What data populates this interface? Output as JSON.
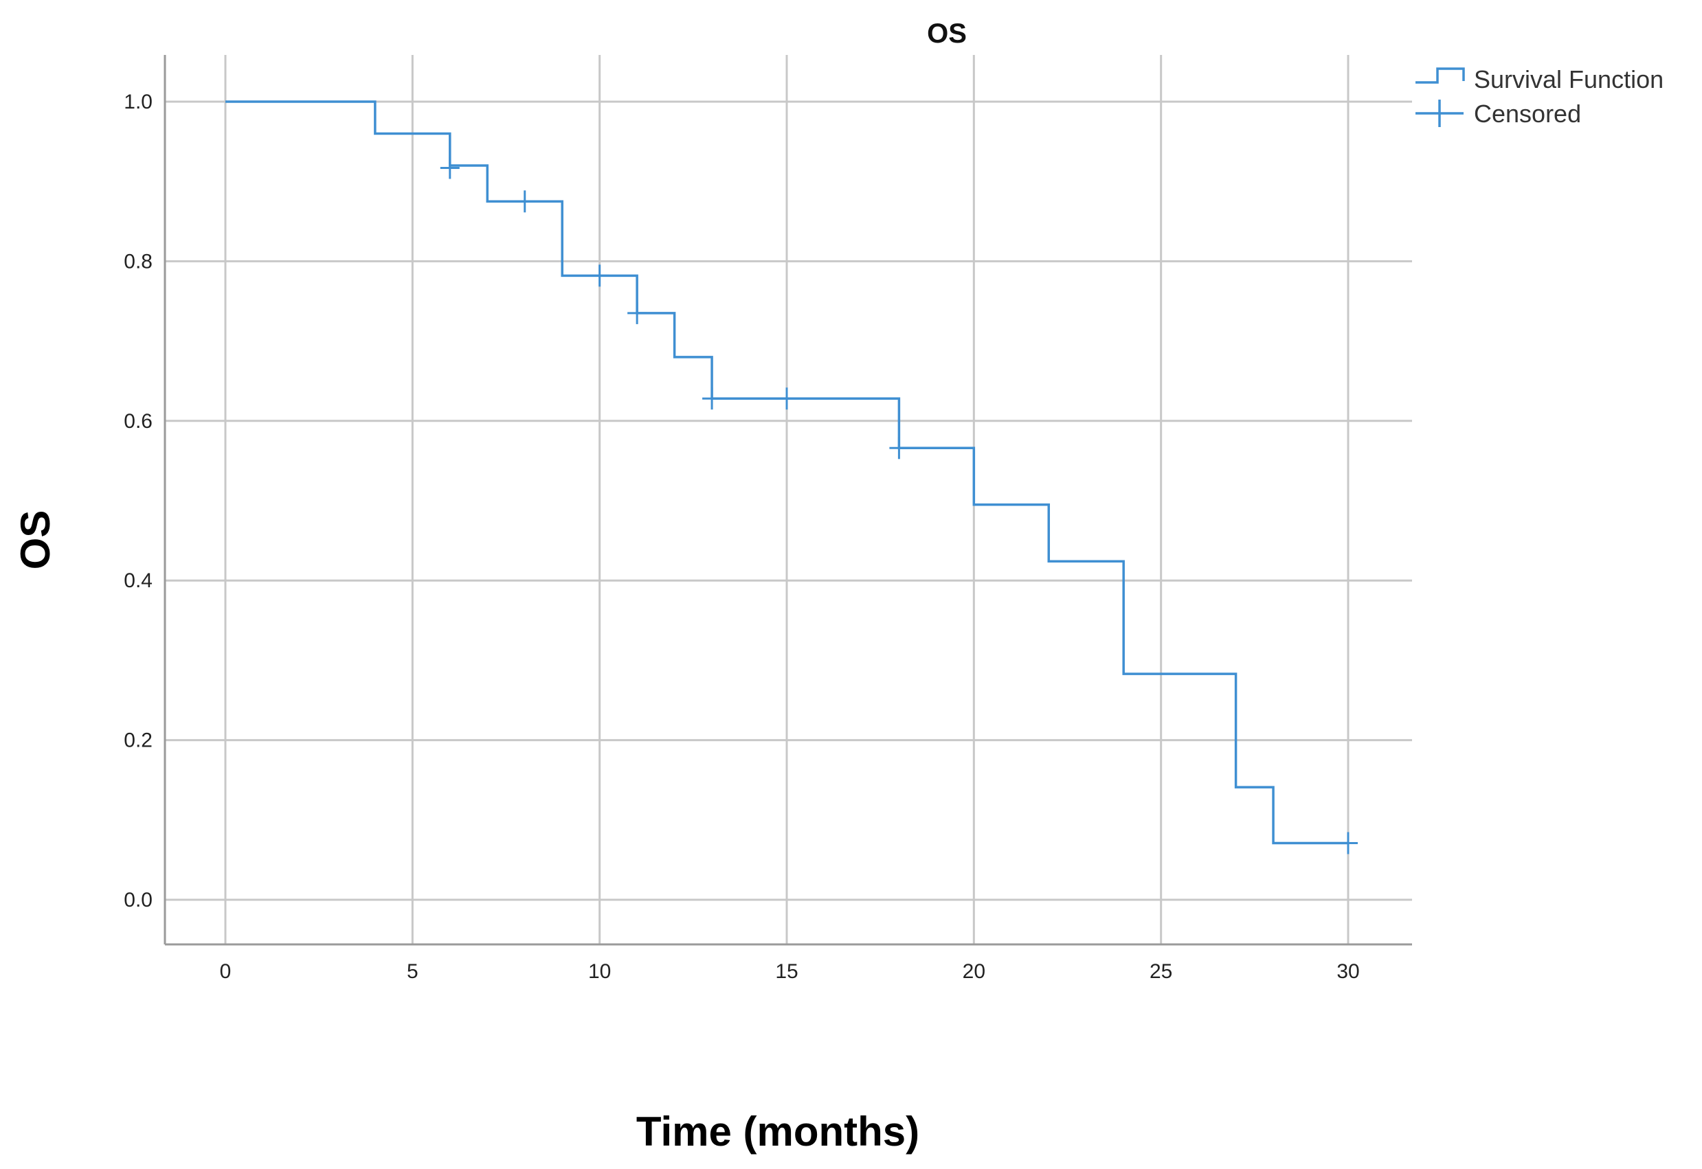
{
  "chart_data": {
    "type": "line",
    "step": true,
    "title": "OS",
    "xlabel": "Time (months)",
    "ylabel": "OS",
    "xlim": [
      0,
      30
    ],
    "ylim": [
      0.0,
      1.0
    ],
    "xticks": [
      "0",
      "5",
      "10",
      "15",
      "20",
      "25",
      "30"
    ],
    "yticks": [
      "0.0",
      "0.2",
      "0.4",
      "0.6",
      "0.8",
      "1.0"
    ],
    "grid": true,
    "legend_position": "top-right",
    "series": [
      {
        "name": "Survival Function",
        "color": "#3f8fd2",
        "x": [
          0,
          4,
          6,
          7,
          9,
          11,
          12,
          13,
          18,
          20,
          22,
          24,
          27,
          28,
          30
        ],
        "y": [
          1.0,
          0.96,
          0.92,
          0.875,
          0.782,
          0.735,
          0.68,
          0.628,
          0.566,
          0.495,
          0.424,
          0.283,
          0.141,
          0.071,
          0.071
        ]
      },
      {
        "name": "Censored",
        "color": "#3f8fd2",
        "x": [
          6,
          8,
          10,
          11,
          13,
          15,
          18,
          30
        ],
        "y": [
          0.917,
          0.875,
          0.782,
          0.735,
          0.628,
          0.628,
          0.566,
          0.071
        ]
      }
    ]
  }
}
